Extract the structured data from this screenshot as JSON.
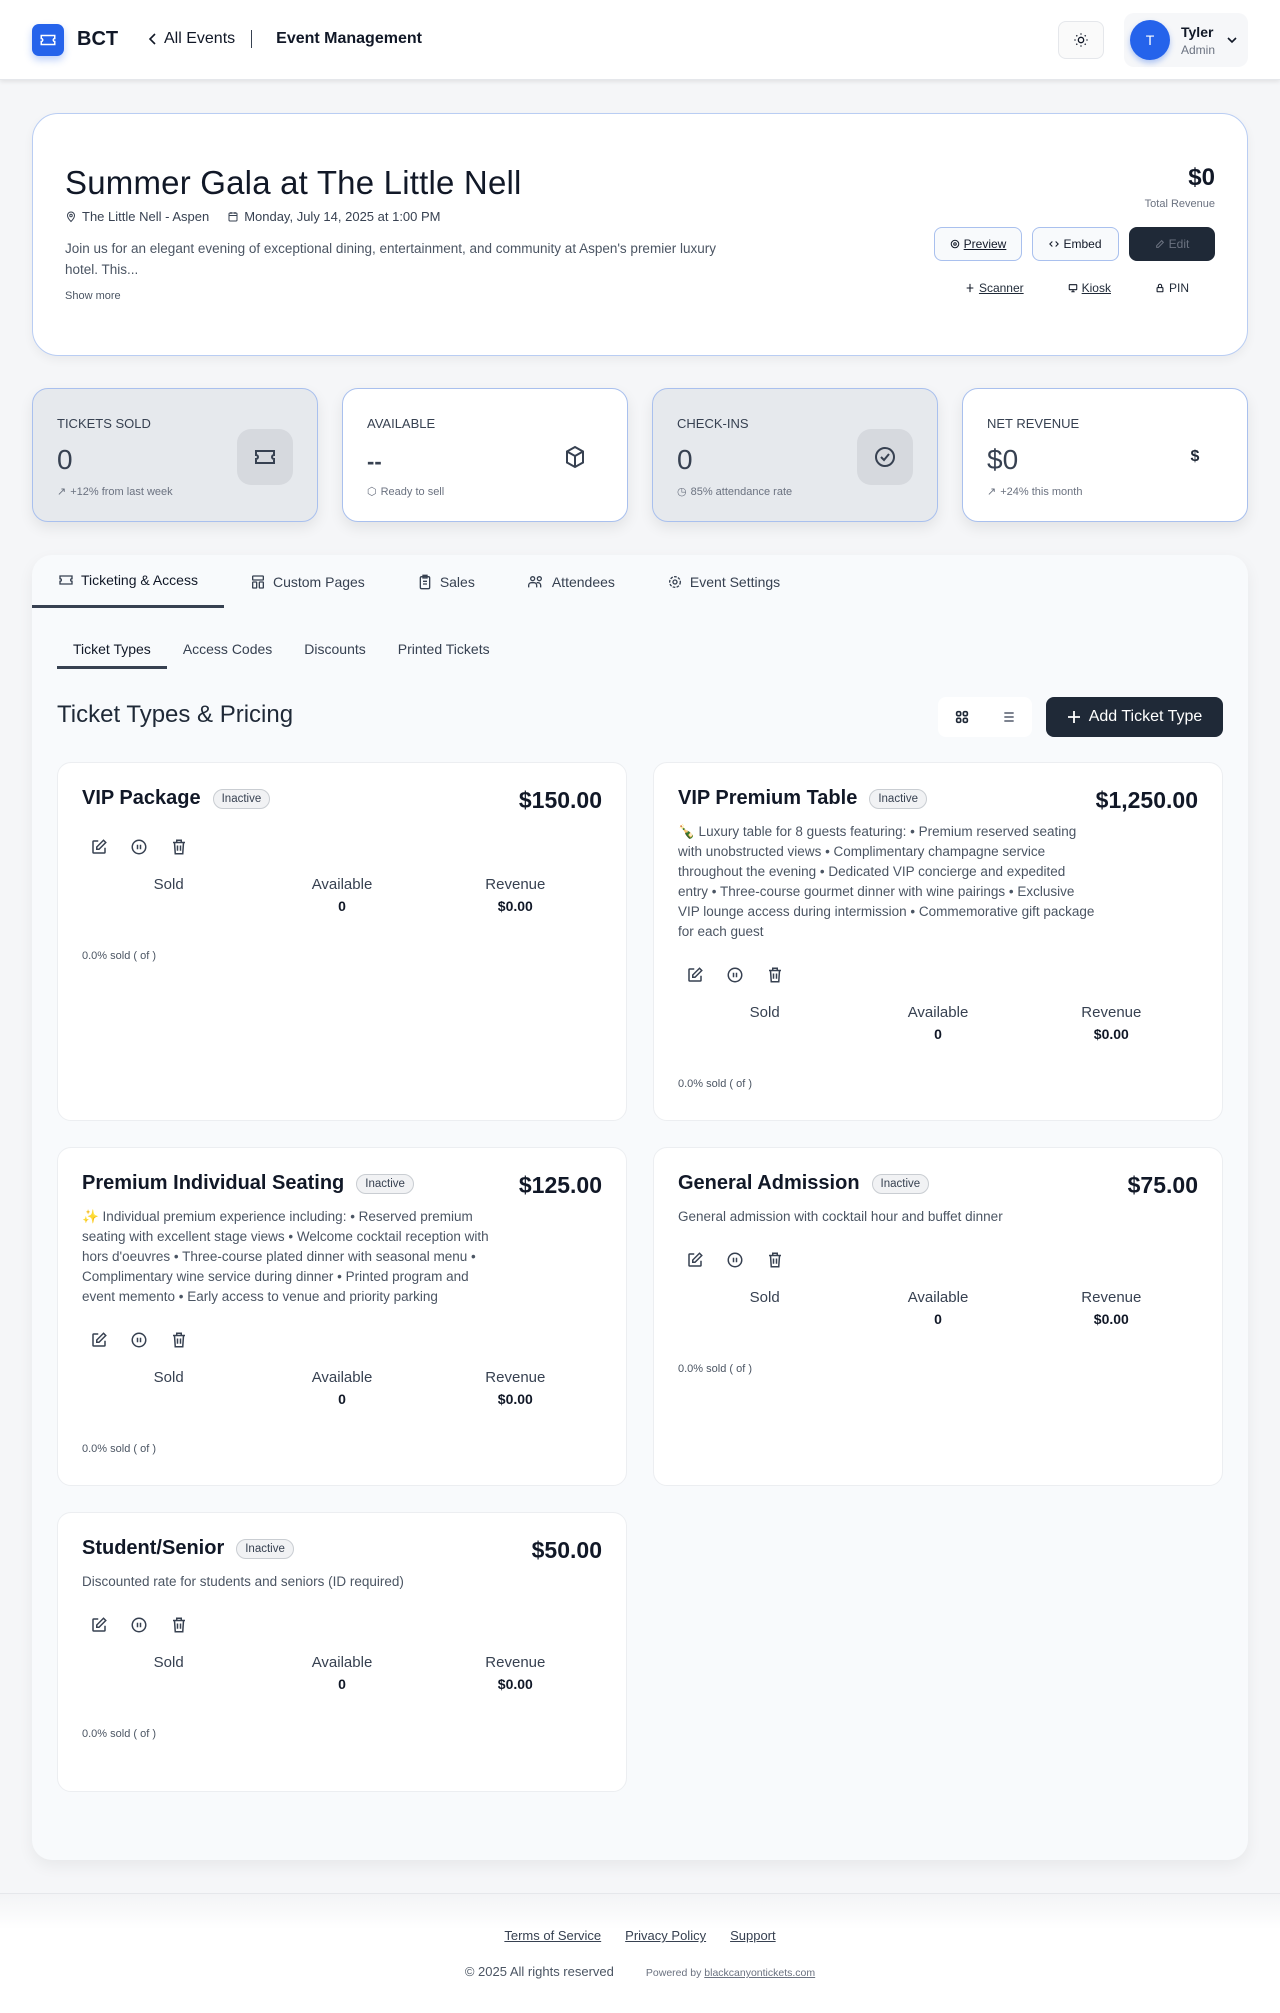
{
  "header": {
    "brand": "BCT",
    "back": "All Events",
    "current": "Event Management",
    "user": {
      "initial": "T",
      "name": "Tyler",
      "role": "Admin"
    }
  },
  "event": {
    "title": "Summer Gala at The Little Nell",
    "venue": "The Little Nell - Aspen",
    "date": "Monday, July 14, 2025 at 1:00 PM",
    "description": "Join us for an elegant evening of exceptional dining, entertainment, and community at Aspen's premier luxury hotel. This...",
    "show_more": "Show more",
    "revenue": "$0",
    "revenue_label": "Total Revenue",
    "buttons": {
      "preview": "Preview",
      "embed": "Embed",
      "edit": "Edit"
    },
    "links": {
      "scanner": "Scanner",
      "kiosk": "Kiosk",
      "pin": "PIN"
    }
  },
  "stats": [
    {
      "label": "TICKETS SOLD",
      "value": "0",
      "sub": "+12% from last week"
    },
    {
      "label": "AVAILABLE",
      "value": "--",
      "sub": "Ready to sell"
    },
    {
      "label": "CHECK-INS",
      "value": "0",
      "sub": "85% attendance rate"
    },
    {
      "label": "NET REVENUE",
      "value": "$0",
      "sub": "+24% this month",
      "icon_text": "$"
    }
  ],
  "tabs": [
    "Ticketing & Access",
    "Custom Pages",
    "Sales",
    "Attendees",
    "Event Settings"
  ],
  "subtabs": [
    "Ticket Types",
    "Access Codes",
    "Discounts",
    "Printed Tickets"
  ],
  "section": {
    "title": "Ticket Types & Pricing",
    "add_label": "Add Ticket Type"
  },
  "ticket_labels": {
    "sold": "Sold",
    "available": "Available",
    "revenue": "Revenue",
    "actions": [
      "edit-icon",
      "pause-icon",
      "trash-icon"
    ]
  },
  "tickets": [
    {
      "name": "VIP Package",
      "status": "Inactive",
      "price": "$150.00",
      "description": "",
      "sold": "",
      "available": "0",
      "revenue": "$0.00",
      "progress": "0.0% sold ( of )"
    },
    {
      "name": "VIP Premium Table",
      "status": "Inactive",
      "price": "$1,250.00",
      "description": "🍾 Luxury table for 8 guests featuring: • Premium reserved seating with unobstructed views • Complimentary champagne service throughout the evening • Dedicated VIP concierge and expedited entry • Three-course gourmet dinner with wine pairings • Exclusive VIP lounge access during intermission • Commemorative gift package for each guest",
      "sold": "",
      "available": "0",
      "revenue": "$0.00",
      "progress": "0.0% sold ( of )"
    },
    {
      "name": "Premium Individual Seating",
      "status": "Inactive",
      "price": "$125.00",
      "description": "✨ Individual premium experience including: • Reserved premium seating with excellent stage views • Welcome cocktail reception with hors d'oeuvres • Three-course plated dinner with seasonal menu • Complimentary wine service during dinner • Printed program and event memento • Early access to venue and priority parking",
      "sold": "",
      "available": "0",
      "revenue": "$0.00",
      "progress": "0.0% sold ( of )"
    },
    {
      "name": "General Admission",
      "status": "Inactive",
      "price": "$75.00",
      "description": "General admission with cocktail hour and buffet dinner",
      "sold": "",
      "available": "0",
      "revenue": "$0.00",
      "progress": "0.0% sold ( of )"
    },
    {
      "name": "Student/Senior",
      "status": "Inactive",
      "price": "$50.00",
      "description": "Discounted rate for students and seniors (ID required)",
      "sold": "",
      "available": "0",
      "revenue": "$0.00",
      "progress": "0.0% sold ( of )"
    }
  ],
  "footer": {
    "links": [
      "Terms of Service",
      "Privacy Policy",
      "Support"
    ],
    "copyright": "© 2025 All rights reserved",
    "powered_by": "Powered by",
    "powered_link": "blackcanyontickets.com"
  },
  "colors": {
    "accent": "#2563eb",
    "dark": "#1f2937",
    "border": "#a9c0ee"
  }
}
